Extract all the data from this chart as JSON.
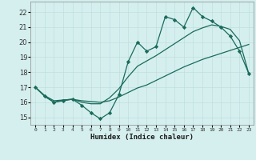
{
  "xlabel": "Humidex (Indice chaleur)",
  "bg_color": "#d5efef",
  "grid_color": "#c0dede",
  "line_color": "#1a6b5a",
  "xlim": [
    -0.5,
    23.5
  ],
  "ylim": [
    14.5,
    22.7
  ],
  "xticks": [
    0,
    1,
    2,
    3,
    4,
    5,
    6,
    7,
    8,
    9,
    10,
    11,
    12,
    13,
    14,
    15,
    16,
    17,
    18,
    19,
    20,
    21,
    22,
    23
  ],
  "yticks": [
    15,
    16,
    17,
    18,
    19,
    20,
    21,
    22
  ],
  "series": [
    {
      "x": [
        0,
        1,
        2,
        3,
        4,
        5,
        6,
        7,
        8,
        9,
        10,
        11,
        12,
        13,
        14,
        15,
        16,
        17,
        18,
        19,
        20,
        21,
        22,
        23
      ],
      "y": [
        17.0,
        16.4,
        16.0,
        16.1,
        16.2,
        15.8,
        15.3,
        14.9,
        15.3,
        16.5,
        18.7,
        20.0,
        19.4,
        19.7,
        21.7,
        21.5,
        21.0,
        22.3,
        21.7,
        21.4,
        21.0,
        20.4,
        19.4,
        17.9
      ],
      "marker": "D",
      "markersize": 2.2,
      "linewidth": 0.9
    },
    {
      "x": [
        0,
        1,
        2,
        3,
        4,
        5,
        6,
        7,
        8,
        9,
        10,
        11,
        12,
        13,
        14,
        15,
        16,
        17,
        18,
        19,
        20,
        21,
        22,
        23
      ],
      "y": [
        17.0,
        16.45,
        16.1,
        16.15,
        16.2,
        16.1,
        16.05,
        16.0,
        16.1,
        16.35,
        16.65,
        16.95,
        17.15,
        17.45,
        17.75,
        18.05,
        18.35,
        18.6,
        18.85,
        19.05,
        19.25,
        19.45,
        19.65,
        19.85
      ],
      "marker": null,
      "markersize": 0,
      "linewidth": 0.9
    },
    {
      "x": [
        0,
        1,
        2,
        3,
        4,
        5,
        6,
        7,
        8,
        9,
        10,
        11,
        12,
        13,
        14,
        15,
        16,
        17,
        18,
        19,
        20,
        21,
        22,
        23
      ],
      "y": [
        17.0,
        16.4,
        16.0,
        16.15,
        16.2,
        16.0,
        15.9,
        15.9,
        16.3,
        16.9,
        17.7,
        18.4,
        18.75,
        19.1,
        19.5,
        19.9,
        20.3,
        20.7,
        20.95,
        21.15,
        21.05,
        20.85,
        20.1,
        17.9
      ],
      "marker": null,
      "markersize": 0,
      "linewidth": 0.9
    }
  ]
}
